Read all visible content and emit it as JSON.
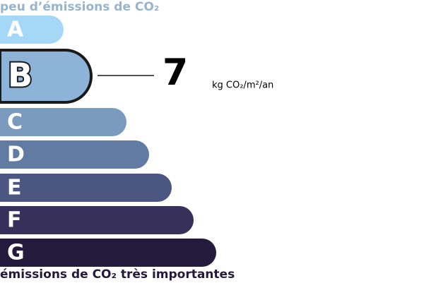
{
  "header": "peu d’émissions de CO₂",
  "classes": [
    {
      "label": "A"
    },
    {
      "label": "B"
    },
    {
      "label": "C"
    },
    {
      "label": "D"
    },
    {
      "label": "E"
    },
    {
      "label": "F"
    },
    {
      "label": "G"
    }
  ],
  "value": 7,
  "unit": "kg CO₂/m²/an",
  "footer": "émissions de CO₂ très importantes"
}
